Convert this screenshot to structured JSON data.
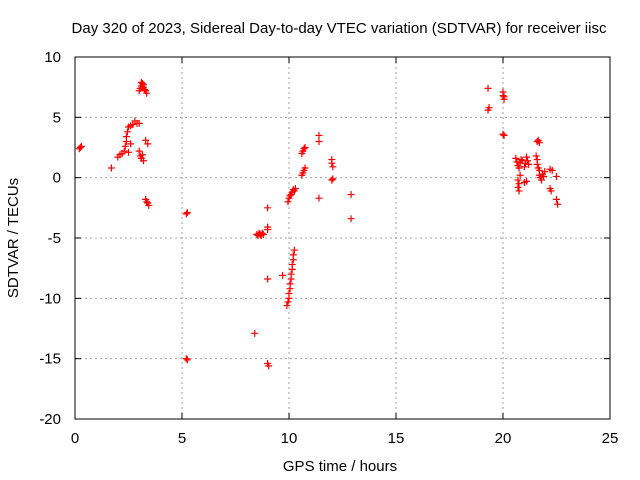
{
  "chart_data": {
    "type": "scatter",
    "title": "Day 320 of 2023, Sidereal Day-to-day VTEC variation (SDTVAR) for receiver iisc",
    "xlabel": "GPS time / hours",
    "ylabel": "SDTVAR / TECUs",
    "xlim": [
      0,
      25
    ],
    "ylim": [
      -20,
      10
    ],
    "xticks": [
      0,
      5,
      10,
      15,
      20,
      25
    ],
    "yticks": [
      -20,
      -15,
      -10,
      -5,
      0,
      5,
      10
    ],
    "grid": true,
    "marker": "+",
    "color": "#ff0000",
    "series": [
      {
        "name": "SDTVAR",
        "points": [
          [
            0.2,
            2.4
          ],
          [
            0.25,
            2.5
          ],
          [
            0.3,
            2.6
          ],
          [
            1.7,
            0.8
          ],
          [
            2.0,
            1.7
          ],
          [
            2.1,
            1.9
          ],
          [
            2.2,
            2.0
          ],
          [
            2.3,
            2.2
          ],
          [
            2.35,
            2.6
          ],
          [
            2.4,
            3.0
          ],
          [
            2.4,
            3.4
          ],
          [
            2.45,
            3.8
          ],
          [
            2.5,
            4.2
          ],
          [
            2.6,
            4.3
          ],
          [
            2.5,
            2.1
          ],
          [
            2.6,
            2.8
          ],
          [
            2.7,
            4.4
          ],
          [
            2.8,
            4.7
          ],
          [
            2.9,
            4.5
          ],
          [
            3.0,
            4.5
          ],
          [
            3.0,
            2.2
          ],
          [
            3.05,
            1.8
          ],
          [
            3.1,
            1.6
          ],
          [
            3.15,
            1.9
          ],
          [
            3.2,
            1.4
          ],
          [
            3.0,
            7.2
          ],
          [
            3.05,
            7.4
          ],
          [
            3.1,
            7.6
          ],
          [
            3.15,
            7.8
          ],
          [
            3.2,
            7.5
          ],
          [
            3.25,
            7.3
          ],
          [
            3.3,
            7.2
          ],
          [
            3.35,
            7.0
          ],
          [
            3.1,
            7.9
          ],
          [
            3.2,
            7.7
          ],
          [
            3.3,
            3.1
          ],
          [
            3.4,
            2.8
          ],
          [
            3.3,
            -1.8
          ],
          [
            3.35,
            -2.0
          ],
          [
            3.4,
            -2.1
          ],
          [
            3.45,
            -2.3
          ],
          [
            5.2,
            -3.0
          ],
          [
            5.25,
            -2.9
          ],
          [
            5.2,
            -15.0
          ],
          [
            5.25,
            -15.1
          ],
          [
            8.4,
            -12.9
          ],
          [
            8.5,
            -4.7
          ],
          [
            8.55,
            -4.8
          ],
          [
            8.6,
            -4.6
          ],
          [
            8.65,
            -4.7
          ],
          [
            8.7,
            -4.8
          ],
          [
            8.75,
            -4.6
          ],
          [
            8.8,
            -4.7
          ],
          [
            9.0,
            -2.5
          ],
          [
            9.0,
            -4.1
          ],
          [
            9.0,
            -4.3
          ],
          [
            9.0,
            -8.4
          ],
          [
            9.0,
            -15.4
          ],
          [
            9.05,
            -15.6
          ],
          [
            9.7,
            -8.1
          ],
          [
            9.9,
            -10.6
          ],
          [
            9.95,
            -10.3
          ],
          [
            10.0,
            -10.0
          ],
          [
            10.0,
            -9.6
          ],
          [
            10.05,
            -9.2
          ],
          [
            10.05,
            -8.8
          ],
          [
            10.1,
            -8.4
          ],
          [
            10.1,
            -8.0
          ],
          [
            10.15,
            -7.6
          ],
          [
            10.15,
            -7.2
          ],
          [
            10.2,
            -6.8
          ],
          [
            10.2,
            -6.4
          ],
          [
            10.25,
            -6.0
          ],
          [
            9.95,
            -2.0
          ],
          [
            10.0,
            -1.7
          ],
          [
            10.05,
            -1.5
          ],
          [
            10.1,
            -1.4
          ],
          [
            10.15,
            -1.2
          ],
          [
            10.2,
            -1.0
          ],
          [
            10.25,
            -1.1
          ],
          [
            10.3,
            -0.9
          ],
          [
            10.6,
            0.2
          ],
          [
            10.65,
            0.4
          ],
          [
            10.7,
            0.6
          ],
          [
            10.75,
            0.8
          ],
          [
            10.6,
            2.0
          ],
          [
            10.65,
            2.2
          ],
          [
            10.7,
            2.4
          ],
          [
            10.75,
            2.5
          ],
          [
            11.4,
            3.5
          ],
          [
            11.4,
            3.0
          ],
          [
            11.4,
            -1.7
          ],
          [
            12.0,
            1.5
          ],
          [
            12.0,
            1.2
          ],
          [
            12.05,
            0.9
          ],
          [
            12.05,
            -0.1
          ],
          [
            12.0,
            -0.2
          ],
          [
            12.9,
            -1.4
          ],
          [
            12.9,
            -3.4
          ],
          [
            19.3,
            7.4
          ],
          [
            19.35,
            5.8
          ],
          [
            19.3,
            5.6
          ],
          [
            20.0,
            7.1
          ],
          [
            20.0,
            6.8
          ],
          [
            20.05,
            6.5
          ],
          [
            20.05,
            6.7
          ],
          [
            20.0,
            3.6
          ],
          [
            20.05,
            3.5
          ],
          [
            20.6,
            1.6
          ],
          [
            20.65,
            1.3
          ],
          [
            20.7,
            1.0
          ],
          [
            20.75,
            0.8
          ],
          [
            20.8,
            1.2
          ],
          [
            20.85,
            1.5
          ],
          [
            20.9,
            1.4
          ],
          [
            20.7,
            -0.2
          ],
          [
            20.75,
            -0.5
          ],
          [
            20.7,
            -0.8
          ],
          [
            20.75,
            -1.1
          ],
          [
            20.8,
            0.2
          ],
          [
            21.0,
            0.9
          ],
          [
            21.05,
            1.2
          ],
          [
            21.1,
            1.7
          ],
          [
            21.15,
            1.4
          ],
          [
            21.2,
            1.1
          ],
          [
            21.0,
            -0.4
          ],
          [
            21.1,
            -0.3
          ],
          [
            21.6,
            3.0
          ],
          [
            21.65,
            3.1
          ],
          [
            21.7,
            2.9
          ],
          [
            21.55,
            1.8
          ],
          [
            21.6,
            1.5
          ],
          [
            21.6,
            1.1
          ],
          [
            21.65,
            0.8
          ],
          [
            21.7,
            0.6
          ],
          [
            21.7,
            0.2
          ],
          [
            21.75,
            0.0
          ],
          [
            21.8,
            -0.2
          ],
          [
            21.85,
            0.3
          ],
          [
            21.9,
            0.1
          ],
          [
            21.95,
            0.5
          ],
          [
            22.2,
            0.7
          ],
          [
            22.3,
            0.6
          ],
          [
            22.2,
            -0.9
          ],
          [
            22.25,
            -1.1
          ],
          [
            22.5,
            0.1
          ],
          [
            22.5,
            -1.8
          ],
          [
            22.55,
            -2.2
          ]
        ]
      }
    ]
  }
}
